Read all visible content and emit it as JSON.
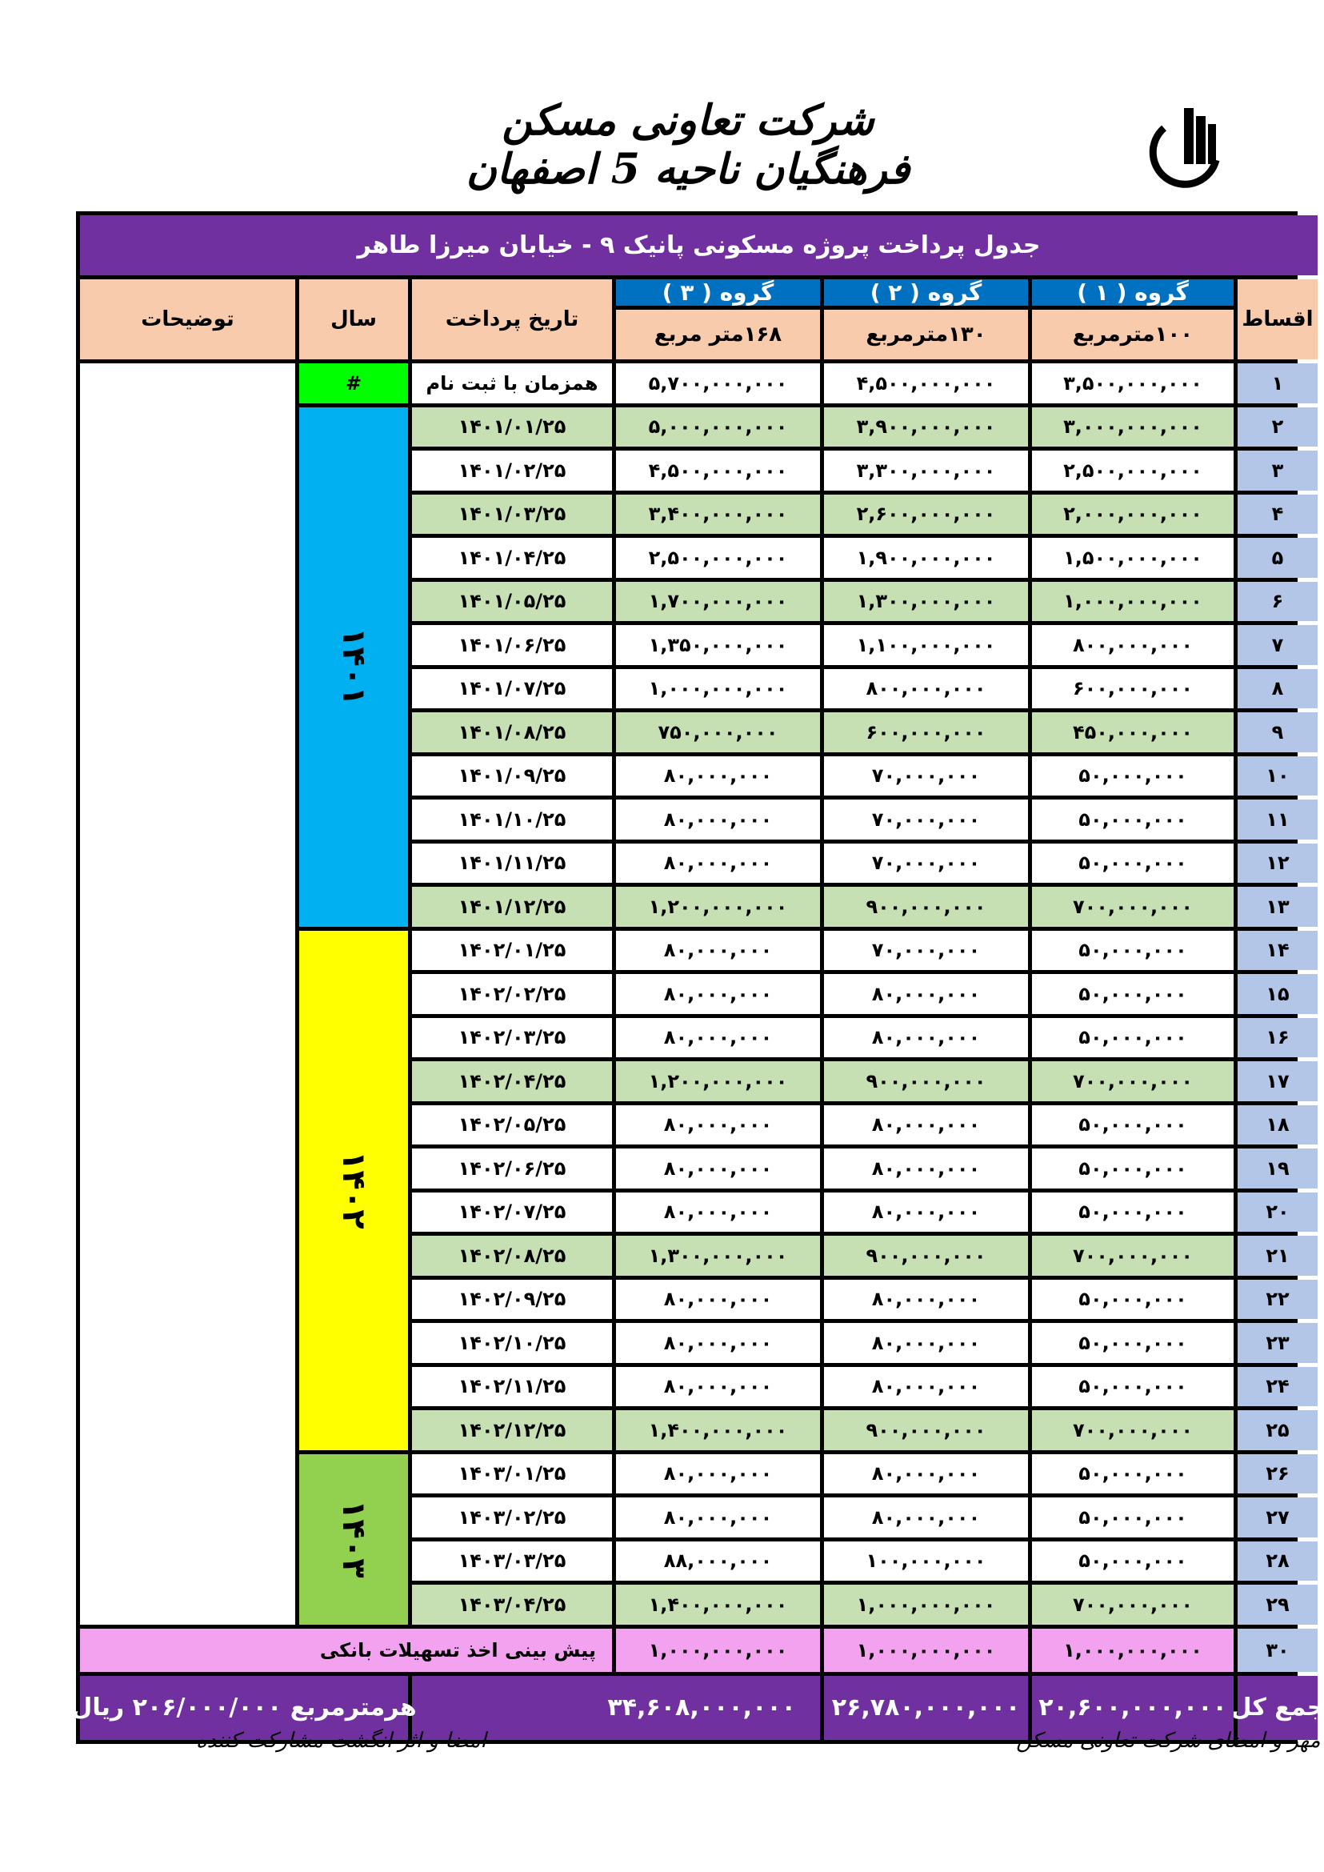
{
  "header": {
    "company": "شرکت تعاونی مسکن فرهنگیان ناحیه 5 اصفهان"
  },
  "table": {
    "title": "جدول پرداخت  پروژه  مسکونی  پانیک ۹ - خیابان میرزا طاهر",
    "col_index": "اقساط",
    "col_date": "تاریخ پرداخت",
    "col_year": "سال",
    "col_notes": "توضیحات",
    "groups": [
      {
        "label": "گروه ( ۱ )",
        "area": "۱۰۰مترمربع"
      },
      {
        "label": "گروه ( ۲ )",
        "area": "۱۳۰مترمربع"
      },
      {
        "label": "گروه ( ۳ )",
        "area": "۱۶۸متر مربع"
      }
    ],
    "years": [
      {
        "label": "#",
        "color": "#00ff00"
      },
      {
        "label": "۱۴۰۱",
        "color": "#00b0f0"
      },
      {
        "label": "۱۴۰۲",
        "color": "#ffff00"
      },
      {
        "label": "۱۴۰۳",
        "color": "#92d050"
      }
    ],
    "rows": [
      {
        "n": "۱",
        "date": "همزمان با ثبت نام",
        "g1": "۳,۵۰۰,۰۰۰,۰۰۰",
        "g2": "۴,۵۰۰,۰۰۰,۰۰۰",
        "g3": "۵,۷۰۰,۰۰۰,۰۰۰",
        "hl": false
      },
      {
        "n": "۲",
        "date": "۱۴۰۱/۰۱/۲۵",
        "g1": "۳,۰۰۰,۰۰۰,۰۰۰",
        "g2": "۳,۹۰۰,۰۰۰,۰۰۰",
        "g3": "۵,۰۰۰,۰۰۰,۰۰۰",
        "hl": true
      },
      {
        "n": "۳",
        "date": "۱۴۰۱/۰۲/۲۵",
        "g1": "۲,۵۰۰,۰۰۰,۰۰۰",
        "g2": "۳,۳۰۰,۰۰۰,۰۰۰",
        "g3": "۴,۵۰۰,۰۰۰,۰۰۰",
        "hl": false
      },
      {
        "n": "۴",
        "date": "۱۴۰۱/۰۳/۲۵",
        "g1": "۲,۰۰۰,۰۰۰,۰۰۰",
        "g2": "۲,۶۰۰,۰۰۰,۰۰۰",
        "g3": "۳,۴۰۰,۰۰۰,۰۰۰",
        "hl": true
      },
      {
        "n": "۵",
        "date": "۱۴۰۱/۰۴/۲۵",
        "g1": "۱,۵۰۰,۰۰۰,۰۰۰",
        "g2": "۱,۹۰۰,۰۰۰,۰۰۰",
        "g3": "۲,۵۰۰,۰۰۰,۰۰۰",
        "hl": false
      },
      {
        "n": "۶",
        "date": "۱۴۰۱/۰۵/۲۵",
        "g1": "۱,۰۰۰,۰۰۰,۰۰۰",
        "g2": "۱,۳۰۰,۰۰۰,۰۰۰",
        "g3": "۱,۷۰۰,۰۰۰,۰۰۰",
        "hl": true
      },
      {
        "n": "۷",
        "date": "۱۴۰۱/۰۶/۲۵",
        "g1": "۸۰۰,۰۰۰,۰۰۰",
        "g2": "۱,۱۰۰,۰۰۰,۰۰۰",
        "g3": "۱,۳۵۰,۰۰۰,۰۰۰",
        "hl": false
      },
      {
        "n": "۸",
        "date": "۱۴۰۱/۰۷/۲۵",
        "g1": "۶۰۰,۰۰۰,۰۰۰",
        "g2": "۸۰۰,۰۰۰,۰۰۰",
        "g3": "۱,۰۰۰,۰۰۰,۰۰۰",
        "hl": false
      },
      {
        "n": "۹",
        "date": "۱۴۰۱/۰۸/۲۵",
        "g1": "۴۵۰,۰۰۰,۰۰۰",
        "g2": "۶۰۰,۰۰۰,۰۰۰",
        "g3": "۷۵۰,۰۰۰,۰۰۰",
        "hl": true
      },
      {
        "n": "۱۰",
        "date": "۱۴۰۱/۰۹/۲۵",
        "g1": "۵۰,۰۰۰,۰۰۰",
        "g2": "۷۰,۰۰۰,۰۰۰",
        "g3": "۸۰,۰۰۰,۰۰۰",
        "hl": false
      },
      {
        "n": "۱۱",
        "date": "۱۴۰۱/۱۰/۲۵",
        "g1": "۵۰,۰۰۰,۰۰۰",
        "g2": "۷۰,۰۰۰,۰۰۰",
        "g3": "۸۰,۰۰۰,۰۰۰",
        "hl": false
      },
      {
        "n": "۱۲",
        "date": "۱۴۰۱/۱۱/۲۵",
        "g1": "۵۰,۰۰۰,۰۰۰",
        "g2": "۷۰,۰۰۰,۰۰۰",
        "g3": "۸۰,۰۰۰,۰۰۰",
        "hl": false
      },
      {
        "n": "۱۳",
        "date": "۱۴۰۱/۱۲/۲۵",
        "g1": "۷۰۰,۰۰۰,۰۰۰",
        "g2": "۹۰۰,۰۰۰,۰۰۰",
        "g3": "۱,۲۰۰,۰۰۰,۰۰۰",
        "hl": true
      },
      {
        "n": "۱۴",
        "date": "۱۴۰۲/۰۱/۲۵",
        "g1": "۵۰,۰۰۰,۰۰۰",
        "g2": "۷۰,۰۰۰,۰۰۰",
        "g3": "۸۰,۰۰۰,۰۰۰",
        "hl": false
      },
      {
        "n": "۱۵",
        "date": "۱۴۰۲/۰۲/۲۵",
        "g1": "۵۰,۰۰۰,۰۰۰",
        "g2": "۸۰,۰۰۰,۰۰۰",
        "g3": "۸۰,۰۰۰,۰۰۰",
        "hl": false
      },
      {
        "n": "۱۶",
        "date": "۱۴۰۲/۰۳/۲۵",
        "g1": "۵۰,۰۰۰,۰۰۰",
        "g2": "۸۰,۰۰۰,۰۰۰",
        "g3": "۸۰,۰۰۰,۰۰۰",
        "hl": false
      },
      {
        "n": "۱۷",
        "date": "۱۴۰۲/۰۴/۲۵",
        "g1": "۷۰۰,۰۰۰,۰۰۰",
        "g2": "۹۰۰,۰۰۰,۰۰۰",
        "g3": "۱,۲۰۰,۰۰۰,۰۰۰",
        "hl": true
      },
      {
        "n": "۱۸",
        "date": "۱۴۰۲/۰۵/۲۵",
        "g1": "۵۰,۰۰۰,۰۰۰",
        "g2": "۸۰,۰۰۰,۰۰۰",
        "g3": "۸۰,۰۰۰,۰۰۰",
        "hl": false
      },
      {
        "n": "۱۹",
        "date": "۱۴۰۲/۰۶/۲۵",
        "g1": "۵۰,۰۰۰,۰۰۰",
        "g2": "۸۰,۰۰۰,۰۰۰",
        "g3": "۸۰,۰۰۰,۰۰۰",
        "hl": false
      },
      {
        "n": "۲۰",
        "date": "۱۴۰۲/۰۷/۲۵",
        "g1": "۵۰,۰۰۰,۰۰۰",
        "g2": "۸۰,۰۰۰,۰۰۰",
        "g3": "۸۰,۰۰۰,۰۰۰",
        "hl": false
      },
      {
        "n": "۲۱",
        "date": "۱۴۰۲/۰۸/۲۵",
        "g1": "۷۰۰,۰۰۰,۰۰۰",
        "g2": "۹۰۰,۰۰۰,۰۰۰",
        "g3": "۱,۳۰۰,۰۰۰,۰۰۰",
        "hl": true
      },
      {
        "n": "۲۲",
        "date": "۱۴۰۲/۰۹/۲۵",
        "g1": "۵۰,۰۰۰,۰۰۰",
        "g2": "۸۰,۰۰۰,۰۰۰",
        "g3": "۸۰,۰۰۰,۰۰۰",
        "hl": false
      },
      {
        "n": "۲۳",
        "date": "۱۴۰۲/۱۰/۲۵",
        "g1": "۵۰,۰۰۰,۰۰۰",
        "g2": "۸۰,۰۰۰,۰۰۰",
        "g3": "۸۰,۰۰۰,۰۰۰",
        "hl": false
      },
      {
        "n": "۲۴",
        "date": "۱۴۰۲/۱۱/۲۵",
        "g1": "۵۰,۰۰۰,۰۰۰",
        "g2": "۸۰,۰۰۰,۰۰۰",
        "g3": "۸۰,۰۰۰,۰۰۰",
        "hl": false
      },
      {
        "n": "۲۵",
        "date": "۱۴۰۲/۱۲/۲۵",
        "g1": "۷۰۰,۰۰۰,۰۰۰",
        "g2": "۹۰۰,۰۰۰,۰۰۰",
        "g3": "۱,۴۰۰,۰۰۰,۰۰۰",
        "hl": true
      },
      {
        "n": "۲۶",
        "date": "۱۴۰۳/۰۱/۲۵",
        "g1": "۵۰,۰۰۰,۰۰۰",
        "g2": "۸۰,۰۰۰,۰۰۰",
        "g3": "۸۰,۰۰۰,۰۰۰",
        "hl": false
      },
      {
        "n": "۲۷",
        "date": "۱۴۰۳/۰۲/۲۵",
        "g1": "۵۰,۰۰۰,۰۰۰",
        "g2": "۸۰,۰۰۰,۰۰۰",
        "g3": "۸۰,۰۰۰,۰۰۰",
        "hl": false
      },
      {
        "n": "۲۸",
        "date": "۱۴۰۳/۰۳/۲۵",
        "g1": "۵۰,۰۰۰,۰۰۰",
        "g2": "۱۰۰,۰۰۰,۰۰۰",
        "g3": "۸۸,۰۰۰,۰۰۰",
        "hl": false
      },
      {
        "n": "۲۹",
        "date": "۱۴۰۳/۰۴/۲۵",
        "g1": "۷۰۰,۰۰۰,۰۰۰",
        "g2": "۱,۰۰۰,۰۰۰,۰۰۰",
        "g3": "۱,۴۰۰,۰۰۰,۰۰۰",
        "hl": true
      }
    ],
    "loan_row": {
      "n": "۳۰",
      "label": "پیش بینی اخذ تسهیلات بانکی",
      "g1": "۱,۰۰۰,۰۰۰,۰۰۰",
      "g2": "۱,۰۰۰,۰۰۰,۰۰۰",
      "g3": "۱,۰۰۰,۰۰۰,۰۰۰"
    },
    "total_row": {
      "label": "جمع کل",
      "g1": "۲۰,۶۰۰,۰۰۰,۰۰۰",
      "g2": "۲۶,۷۸۰,۰۰۰,۰۰۰",
      "g3": "۳۴,۶۰۸,۰۰۰,۰۰۰",
      "price_note": "هرمترمربع ۲۰۶/۰۰۰/۰۰۰ ریال"
    }
  },
  "footer": {
    "coop_signature": "مهر و امضای شرکت تعاونی مسکن",
    "member_signature": "امضا و اثر انگشت مشارکت کننده"
  }
}
